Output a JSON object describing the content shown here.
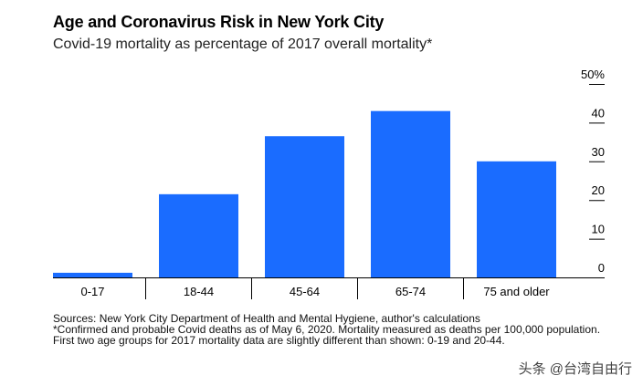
{
  "title": "Age and Coronavirus Risk in New York City",
  "subtitle": "Covid-19 mortality as percentage of 2017 overall mortality*",
  "chart_data": {
    "type": "bar",
    "categories": [
      "0-17",
      "18-44",
      "45-64",
      "65-74",
      "75 and older"
    ],
    "values": [
      1.2,
      21.5,
      36.5,
      43,
      30
    ],
    "ylim": [
      0,
      50
    ],
    "yticks": [
      0,
      10,
      20,
      30,
      40,
      50
    ],
    "ytick_labels": [
      "0",
      "10",
      "20",
      "30",
      "40",
      "50%"
    ],
    "y_axis_side": "right",
    "grid": false,
    "bar_color": "#1a6cff"
  },
  "notes": {
    "source": "Sources: New York City Department of Health and Mental Hygiene, author's calculations",
    "footnote": "*Confirmed and probable Covid deaths as of May 6, 2020. Mortality measured as deaths per 100,000 population. First two age groups for 2017 mortality data are slightly different than shown: 0-19 and 20-44."
  },
  "watermark": "头条 @台湾自由行"
}
